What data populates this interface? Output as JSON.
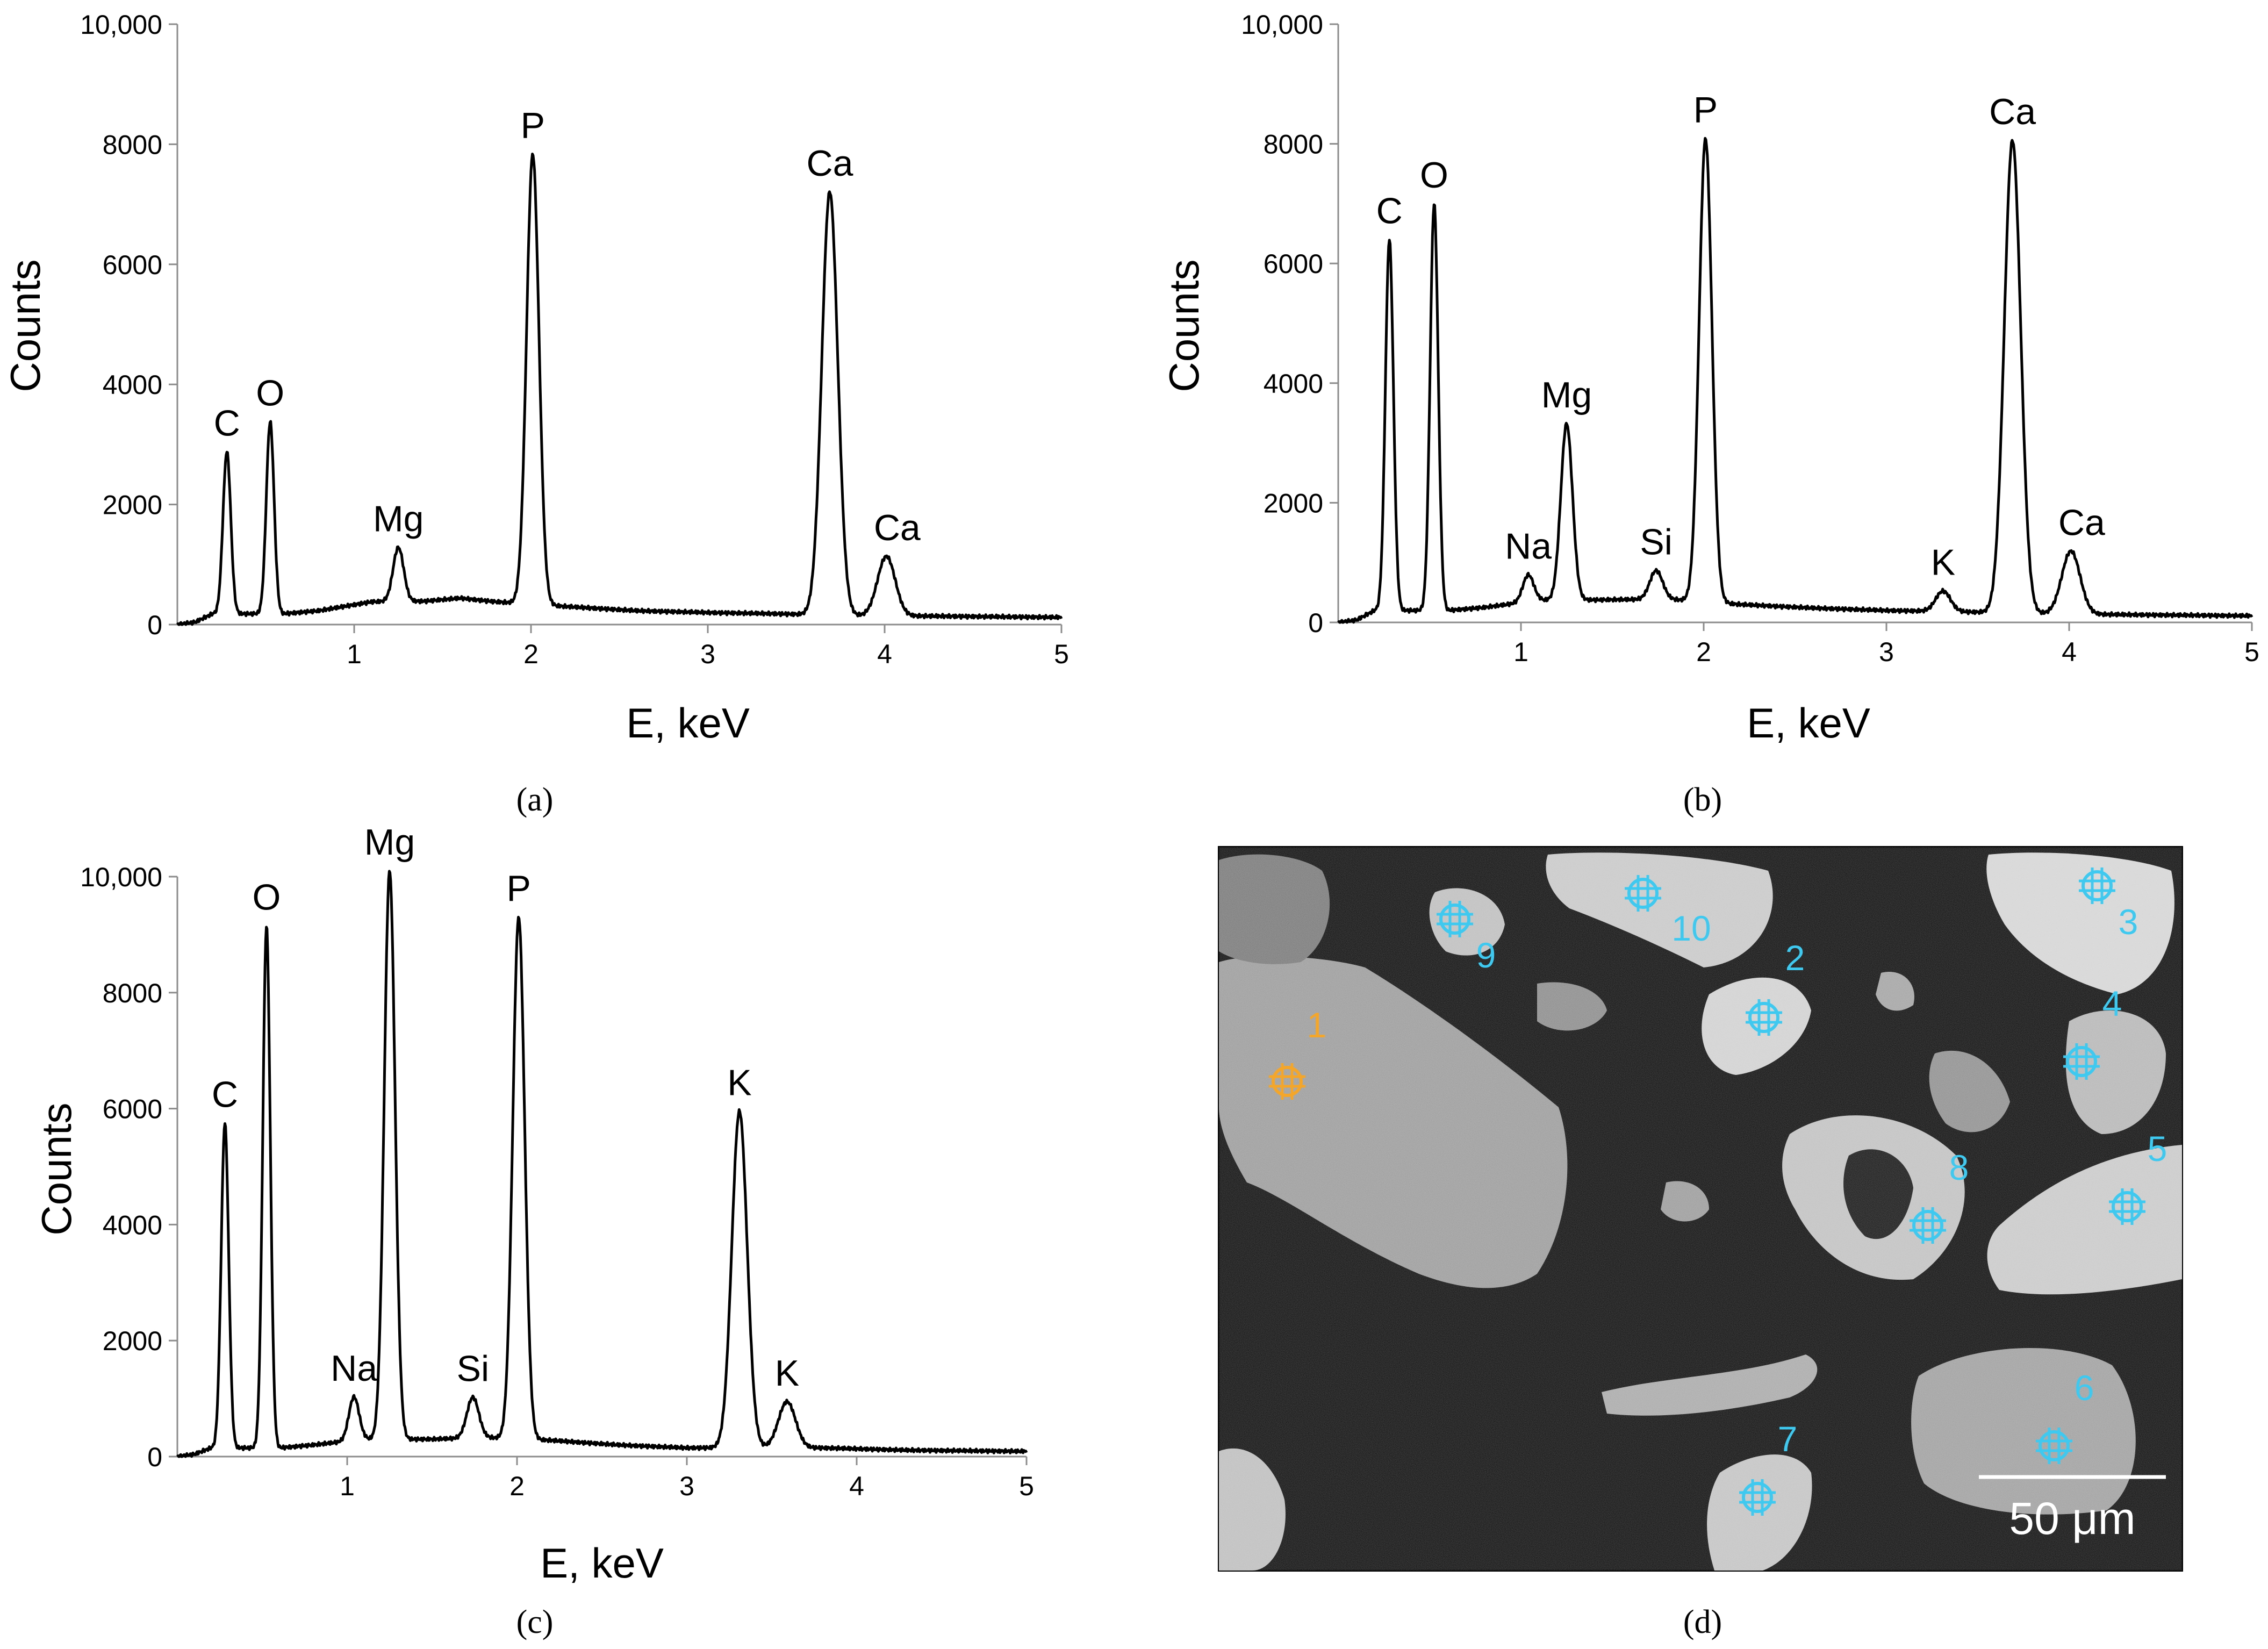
{
  "chart_data": [
    {
      "type": "line",
      "panel": "a",
      "caption": "(a)",
      "xlabel": "E, keV",
      "ylabel": "Counts",
      "xlim": [
        0,
        5
      ],
      "ylim": [
        0,
        10000
      ],
      "x_ticks": [
        "1",
        "2",
        "3",
        "4",
        "5"
      ],
      "y_ticks": [
        "0",
        "2000",
        "4000",
        "6000",
        "8000",
        "10,000"
      ],
      "baseline": [
        [
          0.0,
          0
        ],
        [
          0.1,
          40
        ],
        [
          0.2,
          180
        ],
        [
          0.6,
          180
        ],
        [
          0.8,
          230
        ],
        [
          1.0,
          330
        ],
        [
          1.1,
          380
        ],
        [
          1.4,
          390
        ],
        [
          1.6,
          440
        ],
        [
          1.8,
          380
        ],
        [
          2.2,
          300
        ],
        [
          2.6,
          230
        ],
        [
          3.0,
          200
        ],
        [
          3.4,
          180
        ],
        [
          3.8,
          150
        ],
        [
          4.3,
          140
        ],
        [
          5.0,
          120
        ]
      ],
      "peaks": [
        {
          "label": "C",
          "energy": 0.28,
          "counts": 2700,
          "width": 0.022
        },
        {
          "label": "O",
          "energy": 0.525,
          "counts": 3200,
          "width": 0.022
        },
        {
          "label": "Mg",
          "energy": 1.25,
          "counts": 900,
          "width": 0.03
        },
        {
          "label": "P",
          "energy": 2.01,
          "counts": 7500,
          "width": 0.035
        },
        {
          "label": "Ca",
          "energy": 3.69,
          "counts": 7050,
          "width": 0.045
        },
        {
          "label": "Ca",
          "energy": 4.01,
          "counts": 990,
          "width": 0.05
        }
      ]
    },
    {
      "type": "line",
      "panel": "b",
      "caption": "(b)",
      "xlabel": "E, keV",
      "ylabel": "Counts",
      "xlim": [
        0,
        5
      ],
      "ylim": [
        0,
        10000
      ],
      "x_ticks": [
        "1",
        "2",
        "3",
        "4",
        "5"
      ],
      "y_ticks": [
        "0",
        "2000",
        "4000",
        "6000",
        "8000",
        "10,000"
      ],
      "baseline": [
        [
          0.0,
          0
        ],
        [
          0.1,
          40
        ],
        [
          0.2,
          200
        ],
        [
          0.6,
          200
        ],
        [
          0.8,
          250
        ],
        [
          1.0,
          330
        ],
        [
          1.1,
          370
        ],
        [
          1.5,
          380
        ],
        [
          1.8,
          390
        ],
        [
          2.2,
          300
        ],
        [
          2.6,
          240
        ],
        [
          3.0,
          200
        ],
        [
          3.4,
          180
        ],
        [
          3.8,
          150
        ],
        [
          4.3,
          130
        ],
        [
          5.0,
          110
        ]
      ],
      "peaks": [
        {
          "label": "C",
          "energy": 0.28,
          "counts": 6200,
          "width": 0.022
        },
        {
          "label": "O",
          "energy": 0.525,
          "counts": 6800,
          "width": 0.022
        },
        {
          "label": "Na",
          "energy": 1.04,
          "counts": 450,
          "width": 0.03
        },
        {
          "label": "Mg",
          "energy": 1.25,
          "counts": 2950,
          "width": 0.032
        },
        {
          "label": "Si",
          "energy": 1.74,
          "counts": 480,
          "width": 0.035
        },
        {
          "label": "P",
          "energy": 2.01,
          "counts": 7750,
          "width": 0.035
        },
        {
          "label": "K",
          "energy": 3.31,
          "counts": 340,
          "width": 0.04
        },
        {
          "label": "Ca",
          "energy": 3.69,
          "counts": 7900,
          "width": 0.045
        },
        {
          "label": "Ca",
          "energy": 4.01,
          "counts": 1050,
          "width": 0.05
        }
      ]
    },
    {
      "type": "line",
      "panel": "c",
      "caption": "(c)",
      "xlabel": "E, keV",
      "ylabel": "Counts",
      "xlim": [
        0,
        5
      ],
      "ylim": [
        0,
        10000
      ],
      "x_ticks": [
        "1",
        "2",
        "3",
        "4",
        "5"
      ],
      "y_ticks": [
        "0",
        "2000",
        "4000",
        "6000",
        "8000",
        "10,000"
      ],
      "baseline": [
        [
          0.0,
          0
        ],
        [
          0.1,
          40
        ],
        [
          0.2,
          150
        ],
        [
          0.6,
          150
        ],
        [
          0.8,
          200
        ],
        [
          1.1,
          300
        ],
        [
          1.5,
          300
        ],
        [
          1.8,
          330
        ],
        [
          2.2,
          280
        ],
        [
          2.6,
          200
        ],
        [
          3.0,
          150
        ],
        [
          3.5,
          160
        ],
        [
          3.8,
          150
        ],
        [
          4.3,
          110
        ],
        [
          5.0,
          90
        ]
      ],
      "peaks": [
        {
          "label": "C",
          "energy": 0.28,
          "counts": 5600,
          "width": 0.022
        },
        {
          "label": "O",
          "energy": 0.525,
          "counts": 9000,
          "width": 0.022
        },
        {
          "label": "Na",
          "energy": 1.04,
          "counts": 750,
          "width": 0.03
        },
        {
          "label": "Mg",
          "energy": 1.25,
          "counts": 9800,
          "width": 0.032
        },
        {
          "label": "Si",
          "energy": 1.74,
          "counts": 700,
          "width": 0.035
        },
        {
          "label": "P",
          "energy": 2.01,
          "counts": 9000,
          "width": 0.035
        },
        {
          "label": "K",
          "energy": 3.31,
          "counts": 5800,
          "width": 0.045
        },
        {
          "label": "K",
          "energy": 3.59,
          "counts": 790,
          "width": 0.05
        }
      ]
    }
  ],
  "micrograph": {
    "caption": "(d)",
    "scale_bar": "50 μm",
    "points": [
      {
        "label": "1",
        "color": "#f4a62a"
      },
      {
        "label": "2",
        "color": "#3ec9f0"
      },
      {
        "label": "3",
        "color": "#3ec9f0"
      },
      {
        "label": "4",
        "color": "#3ec9f0"
      },
      {
        "label": "5",
        "color": "#3ec9f0"
      },
      {
        "label": "6",
        "color": "#3ec9f0"
      },
      {
        "label": "7",
        "color": "#3ec9f0"
      },
      {
        "label": "8",
        "color": "#3ec9f0"
      },
      {
        "label": "9",
        "color": "#3ec9f0"
      },
      {
        "label": "10",
        "color": "#3ec9f0"
      }
    ]
  }
}
